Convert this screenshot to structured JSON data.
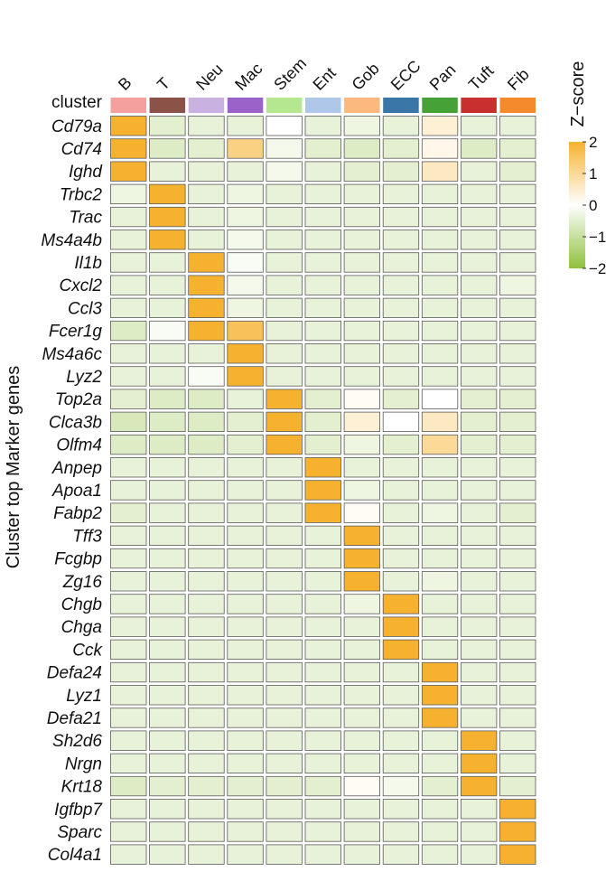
{
  "chart_data": {
    "type": "heatmap",
    "ylabel": "Cluster top Marker genes",
    "annotation_row_label": "cluster",
    "clusters": [
      {
        "name": "B",
        "color": "#F4A09F"
      },
      {
        "name": "T",
        "color": "#8B5347"
      },
      {
        "name": "Neu",
        "color": "#C9B2E2"
      },
      {
        "name": "Mac",
        "color": "#9B63C9"
      },
      {
        "name": "Stem",
        "color": "#B4E78F"
      },
      {
        "name": "Ent",
        "color": "#AFC8EA"
      },
      {
        "name": "Gob",
        "color": "#FBB97E"
      },
      {
        "name": "ECC",
        "color": "#3A76A8"
      },
      {
        "name": "Pan",
        "color": "#46A236"
      },
      {
        "name": "Tuft",
        "color": "#C8302F"
      },
      {
        "name": "Fib",
        "color": "#F58A2C"
      }
    ],
    "genes": [
      "Cd79a",
      "Cd74",
      "Ighd",
      "Trbc2",
      "Trac",
      "Ms4a4b",
      "Il1b",
      "Cxcl2",
      "Ccl3",
      "Fcer1g",
      "Ms4a6c",
      "Lyz2",
      "Top2a",
      "Clca3b",
      "Olfm4",
      "Anpep",
      "Apoa1",
      "Fabp2",
      "Tff3",
      "Fcgbp",
      "Zg16",
      "Chgb",
      "Chga",
      "Cck",
      "Defa24",
      "Lyz1",
      "Defa21",
      "Sh2d6",
      "Nrgn",
      "Krt18",
      "Igfbp7",
      "Sparc",
      "Col4a1"
    ],
    "values": [
      [
        2.0,
        -0.5,
        -0.4,
        -0.4,
        0.0,
        -0.4,
        -0.3,
        -0.4,
        0.4,
        -0.4,
        -0.4
      ],
      [
        2.0,
        -0.6,
        -0.5,
        1.2,
        -0.2,
        -0.5,
        -0.6,
        -0.5,
        0.2,
        -0.6,
        -0.5
      ],
      [
        2.0,
        -0.4,
        -0.4,
        -0.4,
        -0.2,
        -0.4,
        -0.5,
        -0.5,
        0.6,
        -0.4,
        -0.5
      ],
      [
        -0.3,
        2.0,
        -0.4,
        -0.3,
        -0.4,
        -0.4,
        -0.4,
        -0.4,
        -0.4,
        -0.4,
        -0.4
      ],
      [
        -0.4,
        2.0,
        -0.4,
        -0.3,
        -0.4,
        -0.4,
        -0.4,
        -0.4,
        -0.4,
        -0.4,
        -0.4
      ],
      [
        -0.4,
        2.0,
        -0.4,
        -0.2,
        -0.4,
        -0.4,
        -0.4,
        -0.4,
        -0.4,
        -0.4,
        -0.4
      ],
      [
        -0.4,
        -0.4,
        2.0,
        -0.1,
        -0.4,
        -0.4,
        -0.4,
        -0.4,
        -0.4,
        -0.4,
        -0.4
      ],
      [
        -0.4,
        -0.4,
        2.0,
        -0.2,
        -0.4,
        -0.4,
        -0.4,
        -0.4,
        -0.4,
        -0.4,
        -0.3
      ],
      [
        -0.4,
        -0.4,
        2.0,
        -0.3,
        -0.4,
        -0.4,
        -0.4,
        -0.4,
        -0.4,
        -0.4,
        -0.4
      ],
      [
        -0.6,
        -0.1,
        2.0,
        1.6,
        -0.4,
        -0.4,
        -0.4,
        -0.4,
        -0.4,
        -0.4,
        -0.4
      ],
      [
        -0.4,
        -0.4,
        -0.4,
        2.0,
        -0.4,
        -0.4,
        -0.4,
        -0.4,
        -0.4,
        -0.4,
        -0.4
      ],
      [
        -0.4,
        -0.4,
        -0.1,
        2.0,
        -0.4,
        -0.4,
        -0.4,
        -0.4,
        -0.4,
        -0.4,
        -0.4
      ],
      [
        -0.5,
        -0.6,
        -0.6,
        -0.4,
        2.0,
        -0.5,
        0.1,
        -0.5,
        0.0,
        -0.5,
        -0.5
      ],
      [
        -0.7,
        -0.6,
        -0.6,
        -0.5,
        2.0,
        -0.5,
        0.4,
        0.0,
        0.6,
        -0.5,
        -0.5
      ],
      [
        -0.6,
        -0.6,
        -0.6,
        -0.5,
        2.0,
        -0.5,
        -0.3,
        -0.5,
        1.0,
        -0.5,
        -0.5
      ],
      [
        -0.4,
        -0.4,
        -0.4,
        -0.4,
        -0.4,
        2.0,
        -0.4,
        -0.4,
        -0.4,
        -0.4,
        -0.4
      ],
      [
        -0.4,
        -0.4,
        -0.4,
        -0.4,
        -0.4,
        2.0,
        -0.3,
        -0.4,
        -0.4,
        -0.4,
        -0.4
      ],
      [
        -0.5,
        -0.4,
        -0.4,
        -0.4,
        -0.4,
        2.0,
        0.1,
        -0.4,
        -0.3,
        -0.4,
        -0.5
      ],
      [
        -0.4,
        -0.4,
        -0.4,
        -0.4,
        -0.4,
        -0.4,
        2.0,
        -0.4,
        -0.4,
        -0.4,
        -0.4
      ],
      [
        -0.4,
        -0.4,
        -0.4,
        -0.4,
        -0.4,
        -0.4,
        2.0,
        -0.4,
        -0.4,
        -0.4,
        -0.4
      ],
      [
        -0.4,
        -0.4,
        -0.4,
        -0.4,
        -0.4,
        -0.4,
        2.0,
        -0.4,
        -0.3,
        -0.4,
        -0.4
      ],
      [
        -0.4,
        -0.4,
        -0.4,
        -0.4,
        -0.4,
        -0.4,
        -0.3,
        2.0,
        -0.4,
        -0.4,
        -0.4
      ],
      [
        -0.4,
        -0.4,
        -0.4,
        -0.4,
        -0.4,
        -0.4,
        -0.4,
        2.0,
        -0.4,
        -0.4,
        -0.4
      ],
      [
        -0.4,
        -0.4,
        -0.4,
        -0.4,
        -0.4,
        -0.4,
        -0.4,
        2.0,
        -0.4,
        -0.4,
        -0.4
      ],
      [
        -0.4,
        -0.4,
        -0.4,
        -0.4,
        -0.4,
        -0.4,
        -0.4,
        -0.4,
        2.0,
        -0.4,
        -0.4
      ],
      [
        -0.4,
        -0.4,
        -0.4,
        -0.4,
        -0.4,
        -0.4,
        -0.4,
        -0.4,
        2.0,
        -0.4,
        -0.4
      ],
      [
        -0.4,
        -0.4,
        -0.4,
        -0.4,
        -0.4,
        -0.4,
        -0.4,
        -0.4,
        2.0,
        -0.4,
        -0.4
      ],
      [
        -0.4,
        -0.4,
        -0.4,
        -0.4,
        -0.4,
        -0.4,
        -0.4,
        -0.4,
        -0.4,
        2.0,
        -0.4
      ],
      [
        -0.4,
        -0.4,
        -0.4,
        -0.4,
        -0.4,
        -0.4,
        -0.4,
        -0.4,
        -0.4,
        2.0,
        -0.4
      ],
      [
        -0.6,
        -0.5,
        -0.5,
        -0.5,
        -0.5,
        -0.5,
        0.1,
        -0.2,
        -0.5,
        2.0,
        -0.5
      ],
      [
        -0.4,
        -0.4,
        -0.4,
        -0.4,
        -0.4,
        -0.4,
        -0.4,
        -0.4,
        -0.4,
        -0.4,
        2.0
      ],
      [
        -0.4,
        -0.4,
        -0.4,
        -0.4,
        -0.4,
        -0.4,
        -0.4,
        -0.4,
        -0.4,
        -0.4,
        2.0
      ],
      [
        -0.4,
        -0.4,
        -0.4,
        -0.4,
        -0.4,
        -0.4,
        -0.4,
        -0.4,
        -0.4,
        -0.4,
        2.0
      ]
    ],
    "color_scale": {
      "domain": [
        -2,
        0,
        2
      ],
      "colors": [
        "#8DC03C",
        "#FFFFFF",
        "#F6B22F"
      ]
    },
    "legend": {
      "title": "Z−score",
      "ticks": [
        "2",
        "1",
        "0",
        "−1",
        "−2"
      ],
      "tick_values": [
        2,
        1,
        0,
        -1,
        -2
      ],
      "placement": "top-right"
    }
  }
}
